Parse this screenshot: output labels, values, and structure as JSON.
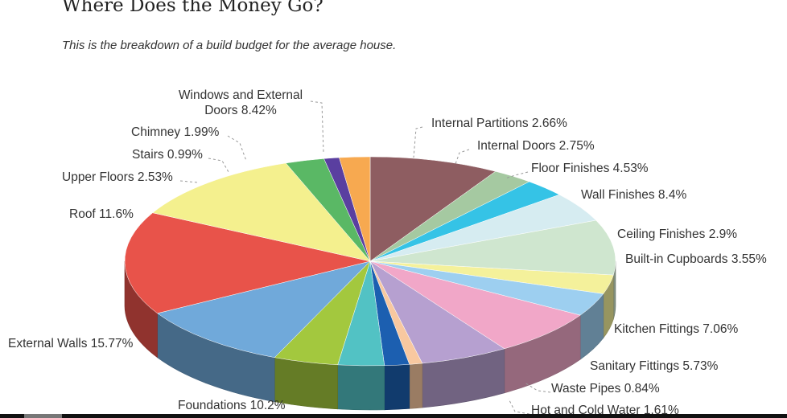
{
  "header": {
    "title": "Where Does the Money Go?",
    "subtitle": "This is the breakdown of a build budget for the average house."
  },
  "chart_data": {
    "type": "pie",
    "title": "Where Does the Money Go?",
    "subtitle": "This is the breakdown of a build budget for the average house.",
    "slices": [
      {
        "label": "Windows and External Doors",
        "value": 8.42,
        "color": "#8e5d61"
      },
      {
        "label": "Internal Partitions",
        "value": 2.66,
        "color": "#a5c9a1"
      },
      {
        "label": "Internal Doors",
        "value": 2.75,
        "color": "#35c3e6"
      },
      {
        "label": "Floor Finishes",
        "value": 4.53,
        "color": "#d6ecf1"
      },
      {
        "label": "Wall Finishes",
        "value": 8.4,
        "color": "#cfe6cf"
      },
      {
        "label": "Ceiling Finishes",
        "value": 2.9,
        "color": "#f4f19b"
      },
      {
        "label": "Built-in Cupboards",
        "value": 3.55,
        "color": "#9dcff0"
      },
      {
        "label": "Kitchen Fittings",
        "value": 7.06,
        "color": "#f1a7c8"
      },
      {
        "label": "Sanitary Fittings",
        "value": 5.73,
        "color": "#b6a0d0"
      },
      {
        "label": "Waste Pipes",
        "value": 0.84,
        "color": "#f8c8a0"
      },
      {
        "label": "Hot and Cold Water",
        "value": 1.61,
        "color": "#1c5fb0"
      },
      {
        "label": "",
        "value": 3.0,
        "color": "#52c2c4"
      },
      {
        "label": "",
        "value": 4.2,
        "color": "#a3c83e"
      },
      {
        "label": "Foundations",
        "value": 10.2,
        "color": "#70a9da"
      },
      {
        "label": "External Walls",
        "value": 15.77,
        "color": "#e8534a"
      },
      {
        "label": "Roof",
        "value": 11.6,
        "color": "#f4f08e"
      },
      {
        "label": "Upper Floors",
        "value": 2.53,
        "color": "#5ab865"
      },
      {
        "label": "Stairs",
        "value": 0.99,
        "color": "#5a3fa0"
      },
      {
        "label": "Chimney",
        "value": 1.99,
        "color": "#f7a950"
      }
    ],
    "labels": [
      {
        "text": "Windows and External",
        "slice": 0
      },
      {
        "text": "Doors 8.42%",
        "slice": 0
      },
      {
        "text": "Internal Partitions 2.66%",
        "slice": 1
      },
      {
        "text": "Internal Doors 2.75%",
        "slice": 2
      },
      {
        "text": "Floor Finishes 4.53%",
        "slice": 3
      },
      {
        "text": "Wall Finishes 8.4%",
        "slice": 4
      },
      {
        "text": "Ceiling Finishes 2.9%",
        "slice": 5
      },
      {
        "text": "Built-in Cupboards 3.55%",
        "slice": 6
      },
      {
        "text": "Kitchen Fittings 7.06%",
        "slice": 7
      },
      {
        "text": "Sanitary Fittings 5.73%",
        "slice": 8
      },
      {
        "text": "Waste Pipes 0.84%",
        "slice": 9
      },
      {
        "text": "Hot and Cold Water 1.61%",
        "slice": 10
      },
      {
        "text": "Foundations 10.2%",
        "slice": 13
      },
      {
        "text": "External Walls 15.77%",
        "slice": 14
      },
      {
        "text": "Roof 11.6%",
        "slice": 15
      },
      {
        "text": "Upper Floors 2.53%",
        "slice": 16
      },
      {
        "text": "Stairs 0.99%",
        "slice": 17
      },
      {
        "text": "Chimney 1.99%",
        "slice": 18
      }
    ],
    "start_slice": "Windows and External Doors",
    "direction": "clockwise",
    "style": "3d-tilted"
  }
}
